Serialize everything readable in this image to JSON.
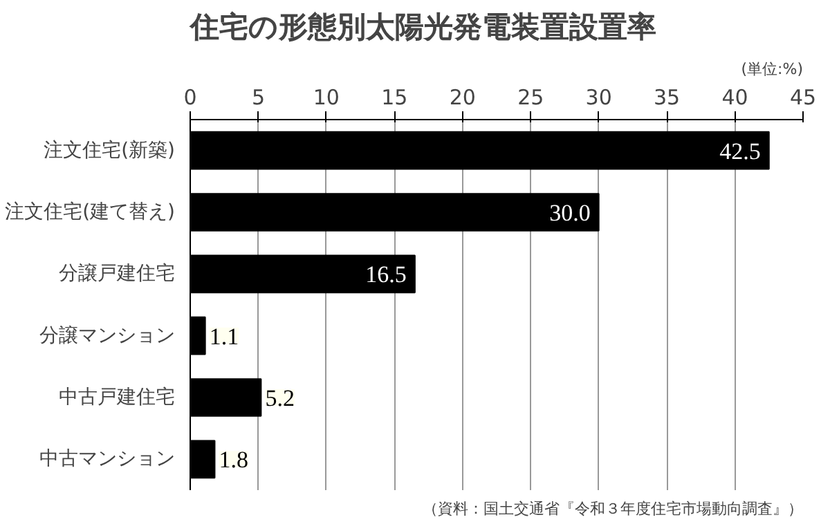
{
  "chart_data": {
    "type": "bar",
    "orientation": "horizontal",
    "title": "住宅の形態別太陽光発電装置設置率",
    "subtitle": "(単位:%)",
    "categories": [
      "注文住宅(新築)",
      "注文住宅(建て替え)",
      "分譲戸建住宅",
      "分譲マンション",
      "中古戸建住宅",
      "中古マンション"
    ],
    "values": [
      42.5,
      30.0,
      16.5,
      1.1,
      5.2,
      1.8
    ],
    "value_labels": [
      "42.5",
      "30.0",
      "16.5",
      "1.1",
      "5.2",
      "1.8"
    ],
    "color": "#000000",
    "xlim": [
      0,
      45
    ],
    "xticks": [
      0,
      5,
      10,
      15,
      20,
      25,
      30,
      35,
      40,
      45
    ],
    "grid": "x",
    "annotations": [
      "（資料：国土交通省『令和３年度住宅市場動向調査』）"
    ]
  }
}
